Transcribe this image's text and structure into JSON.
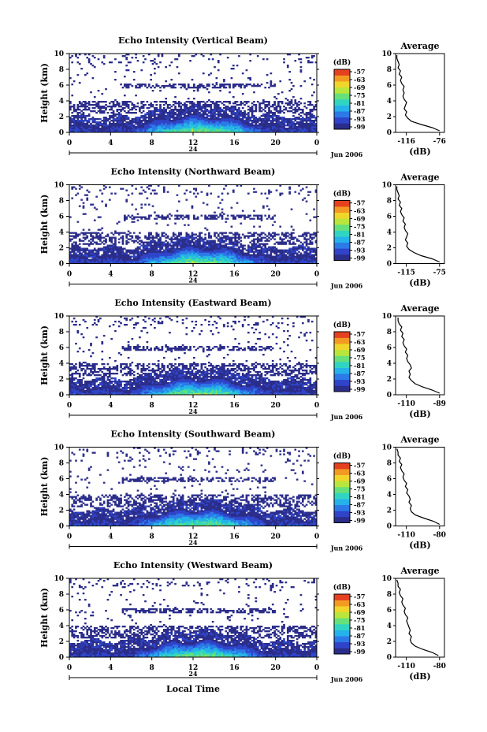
{
  "figure": {
    "xlabel": "Local Time",
    "ylabel": "Height (km)",
    "x_ticks": [
      "0",
      "4",
      "8",
      "12",
      "16",
      "20",
      "0"
    ],
    "y_ticks": [
      "0",
      "2",
      "4",
      "6",
      "8",
      "10"
    ],
    "date_marker": "24",
    "month_label": "Jun 2006",
    "colorbar_unit": "(dB)",
    "colorbar_ticks": [
      "-57",
      "-63",
      "-69",
      "-75",
      "-81",
      "-87",
      "-93",
      "-99"
    ],
    "average_title": "Average",
    "average_xlabel": "(dB)",
    "colors": {
      "colormap": [
        "#2b2d8a",
        "#2f44c9",
        "#2c79e8",
        "#25b1ea",
        "#30d5c2",
        "#66e07a",
        "#b9e63c",
        "#f0d62a",
        "#f39a22",
        "#e5411f"
      ]
    }
  },
  "chart_data": [
    {
      "type": "heatmap",
      "title": "Echo Intensity (Vertical Beam)",
      "xlim": [
        0,
        24
      ],
      "ylim": [
        0,
        10
      ],
      "average_profile": {
        "xlim": [
          -116,
          -76
        ],
        "x_ticks": [
          "-116",
          "-76"
        ],
        "heights": [
          0.2,
          0.6,
          1.0,
          1.4,
          1.8,
          2.2,
          2.6,
          3.0,
          3.4,
          3.8,
          4.2,
          4.6,
          5.0,
          5.4,
          5.8,
          6.2,
          6.6,
          7.0,
          7.4,
          7.8,
          8.2,
          8.6,
          9.0,
          9.4,
          9.8
        ],
        "values": [
          -80,
          -86,
          -95,
          -103,
          -106,
          -108,
          -107,
          -109,
          -108,
          -107,
          -109,
          -110,
          -109,
          -110,
          -109,
          -111,
          -112,
          -111,
          -113,
          -112,
          -114,
          -113,
          -114,
          -115,
          -115
        ]
      }
    },
    {
      "type": "heatmap",
      "title": "Echo Intensity (Northward Beam)",
      "xlim": [
        0,
        24
      ],
      "ylim": [
        0,
        10
      ],
      "average_profile": {
        "xlim": [
          -115,
          -75
        ],
        "x_ticks": [
          "-115",
          "-75"
        ],
        "heights": [
          0.2,
          0.6,
          1.0,
          1.4,
          1.8,
          2.2,
          2.6,
          3.0,
          3.4,
          3.8,
          4.2,
          4.6,
          5.0,
          5.4,
          5.8,
          6.2,
          6.6,
          7.0,
          7.4,
          7.8,
          8.2,
          8.6,
          9.0,
          9.4,
          9.8
        ],
        "values": [
          -79,
          -85,
          -94,
          -100,
          -104,
          -106,
          -105,
          -107,
          -106,
          -105,
          -107,
          -108,
          -107,
          -109,
          -108,
          -110,
          -111,
          -110,
          -112,
          -111,
          -113,
          -112,
          -113,
          -114,
          -114
        ]
      }
    },
    {
      "type": "heatmap",
      "title": "Echo Intensity (Eastward Beam)",
      "xlim": [
        0,
        24
      ],
      "ylim": [
        0,
        10
      ],
      "average_profile": {
        "xlim": [
          -120,
          -80
        ],
        "x_ticks": [
          "-110",
          "-89"
        ],
        "heights": [
          0.2,
          0.6,
          1.0,
          1.4,
          1.8,
          2.2,
          2.6,
          3.0,
          3.4,
          3.8,
          4.2,
          4.6,
          5.0,
          5.4,
          5.8,
          6.2,
          6.6,
          7.0,
          7.4,
          7.8,
          8.2,
          8.6,
          9.0,
          9.4,
          9.8
        ],
        "values": [
          -84,
          -90,
          -98,
          -104,
          -107,
          -109,
          -108,
          -109,
          -107,
          -108,
          -110,
          -111,
          -110,
          -112,
          -111,
          -113,
          -114,
          -113,
          -115,
          -114,
          -116,
          -115,
          -117,
          -118,
          -118
        ]
      }
    },
    {
      "type": "heatmap",
      "title": "Echo Intensity (Southward Beam)",
      "xlim": [
        0,
        24
      ],
      "ylim": [
        0,
        10
      ],
      "average_profile": {
        "xlim": [
          -120,
          -80
        ],
        "x_ticks": [
          "-110",
          "-80"
        ],
        "heights": [
          0.2,
          0.6,
          1.0,
          1.4,
          1.8,
          2.2,
          2.6,
          3.0,
          3.4,
          3.8,
          4.2,
          4.6,
          5.0,
          5.4,
          5.8,
          6.2,
          6.6,
          7.0,
          7.4,
          7.8,
          8.2,
          8.6,
          9.0,
          9.4,
          9.8
        ],
        "values": [
          -84,
          -89,
          -97,
          -104,
          -107,
          -108,
          -107,
          -109,
          -108,
          -109,
          -111,
          -110,
          -112,
          -111,
          -113,
          -114,
          -113,
          -115,
          -116,
          -115,
          -117,
          -116,
          -118,
          -118,
          -119
        ]
      }
    },
    {
      "type": "heatmap",
      "title": "Echo Intensity (Westward Beam)",
      "xlim": [
        0,
        24
      ],
      "ylim": [
        0,
        10
      ],
      "average_profile": {
        "xlim": [
          -120,
          -80
        ],
        "x_ticks": [
          "-110",
          "-80"
        ],
        "heights": [
          0.2,
          0.6,
          1.0,
          1.4,
          1.8,
          2.2,
          2.6,
          3.0,
          3.4,
          3.8,
          4.2,
          4.6,
          5.0,
          5.4,
          5.8,
          6.2,
          6.6,
          7.0,
          7.4,
          7.8,
          8.2,
          8.6,
          9.0,
          9.4,
          9.8
        ],
        "values": [
          -85,
          -90,
          -98,
          -104,
          -107,
          -108,
          -107,
          -109,
          -108,
          -109,
          -110,
          -111,
          -110,
          -112,
          -113,
          -112,
          -114,
          -115,
          -114,
          -116,
          -117,
          -116,
          -118,
          -118,
          -119
        ]
      }
    }
  ]
}
